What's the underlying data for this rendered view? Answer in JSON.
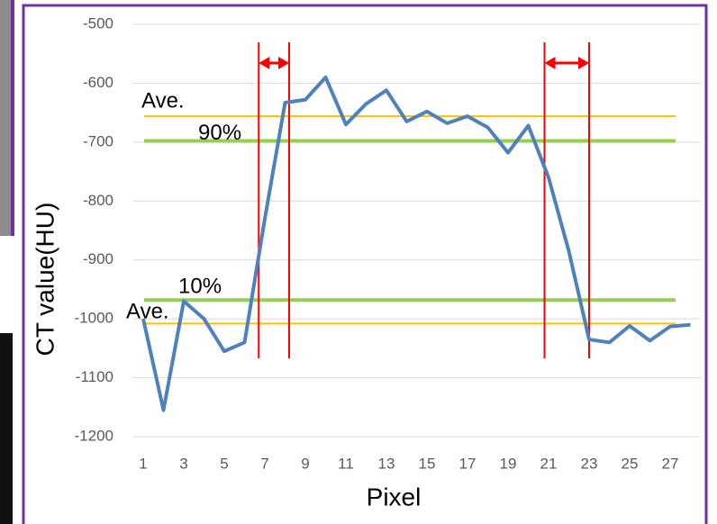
{
  "chart_data": {
    "type": "line",
    "x_label": "Pixel",
    "y_label": "CT value(HU)",
    "x": [
      1,
      2,
      3,
      4,
      5,
      6,
      7,
      8,
      9,
      10,
      11,
      12,
      13,
      14,
      15,
      16,
      17,
      18,
      19,
      20,
      21,
      22,
      23,
      24,
      25,
      26,
      27,
      28
    ],
    "series": [
      {
        "color": "#4f81bd",
        "values": [
          -1000,
          -1155,
          -970,
          -1000,
          -1055,
          -1040,
          -830,
          -633,
          -628,
          -590,
          -670,
          -635,
          -612,
          -665,
          -648,
          -668,
          -656,
          -675,
          -718,
          -672,
          -760,
          -885,
          -1035,
          -1040,
          -1012,
          -1037,
          -1013,
          -1010
        ]
      }
    ],
    "xlim": [
      0.5,
      28.5
    ],
    "xticks": [
      1,
      3,
      5,
      7,
      9,
      11,
      13,
      15,
      17,
      19,
      21,
      23,
      25,
      27
    ],
    "ylim": [
      -1200,
      -500
    ],
    "yticks": [
      -1200,
      -1100,
      -1000,
      -900,
      -800,
      -700,
      -600,
      -500
    ],
    "grid": true,
    "hlines": [
      {
        "value": -656,
        "color": "#ffc000",
        "label": "Ave."
      },
      {
        "value": -698,
        "color": "#92d050",
        "label": "90%"
      },
      {
        "value": -968,
        "color": "#92d050",
        "label": "10%"
      },
      {
        "value": -1008,
        "color": "#ffc000",
        "label": "Ave."
      }
    ],
    "vlines": {
      "color": "#ff0000",
      "values": [
        6.7,
        8.2,
        20.8,
        23.0
      ]
    }
  }
}
